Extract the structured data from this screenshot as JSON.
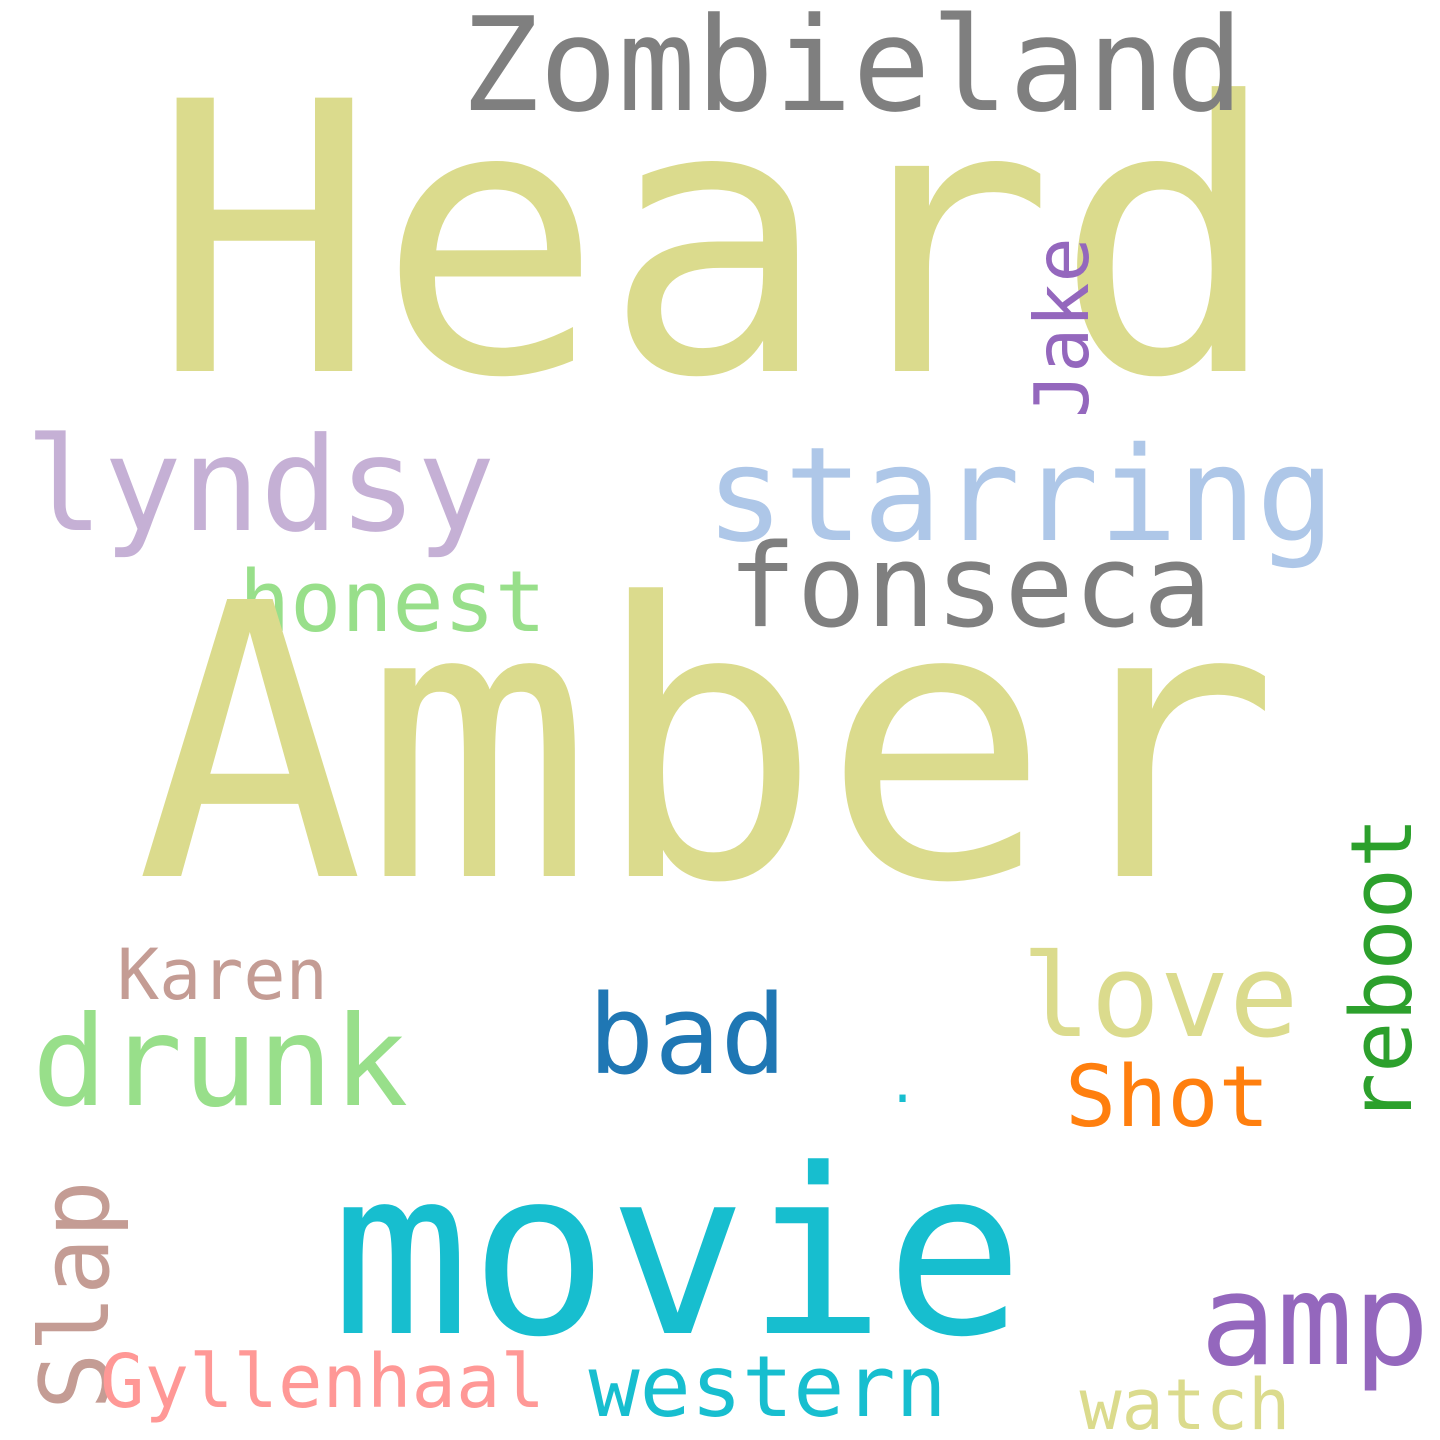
{
  "words": [
    {
      "key": "heard",
      "text": "Heard",
      "color": "#dbdb8d"
    },
    {
      "key": "zombieland",
      "text": "Zombieland",
      "color": "#7f7f7f"
    },
    {
      "key": "jake",
      "text": "Jake",
      "color": "#9467bd"
    },
    {
      "key": "lyndsy",
      "text": "lyndsy",
      "color": "#c5b0d5"
    },
    {
      "key": "starring",
      "text": "starring",
      "color": "#aec7e8"
    },
    {
      "key": "honest",
      "text": "honest",
      "color": "#98df8a"
    },
    {
      "key": "fonseca",
      "text": "fonseca",
      "color": "#7f7f7f"
    },
    {
      "key": "amber",
      "text": "Amber",
      "color": "#dbdb8d"
    },
    {
      "key": "period",
      "text": ".",
      "color": "#17becf"
    },
    {
      "key": "reboot",
      "text": "reboot",
      "color": "#2ca02c"
    },
    {
      "key": "karen",
      "text": "Karen",
      "color": "#c49c94"
    },
    {
      "key": "love",
      "text": "love",
      "color": "#dbdb8d"
    },
    {
      "key": "bad",
      "text": "bad",
      "color": "#1f77b4"
    },
    {
      "key": "drunk",
      "text": "drunk",
      "color": "#98df8a"
    },
    {
      "key": "shot",
      "text": "Shot",
      "color": "#ff7f0e"
    },
    {
      "key": "slap",
      "text": "Slap",
      "color": "#c49c94"
    },
    {
      "key": "movie",
      "text": "movie",
      "color": "#17becf"
    },
    {
      "key": "amp",
      "text": "amp",
      "color": "#9467bd"
    },
    {
      "key": "gyllenhaal",
      "text": "Gyllenhaal",
      "color": "#ff9896"
    },
    {
      "key": "western",
      "text": "western",
      "color": "#17becf"
    },
    {
      "key": "watch",
      "text": "watch",
      "color": "#dbdb8d"
    }
  ]
}
